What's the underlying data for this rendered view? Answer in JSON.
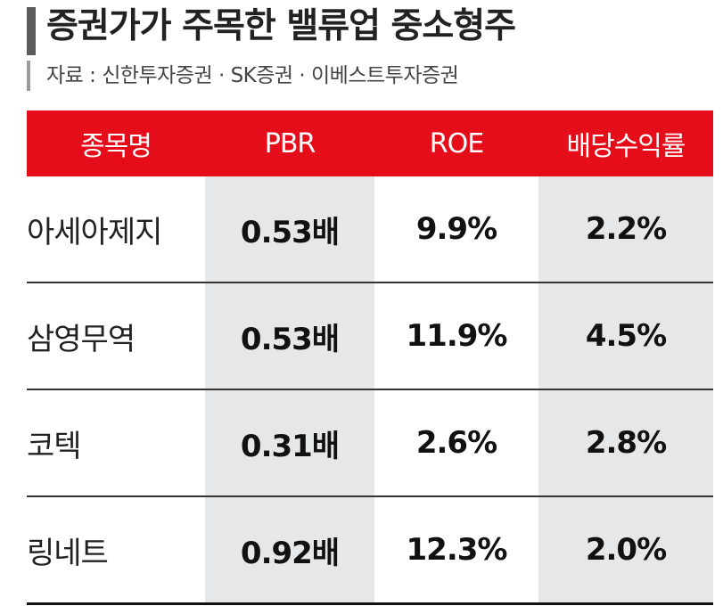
{
  "title": "증권가가 주목한 밸류업 중소형주",
  "source": "자료 : 신한투자증권 · SK증권 · 이베스트투자증권",
  "colors": {
    "header_bg": "#e60d1a",
    "header_text": "#ffffff",
    "shaded_column": "#e6e7e9",
    "title_bar": "#5b5b5b"
  },
  "chart_data": {
    "type": "table",
    "title": "증권가가 주목한 밸류업 중소형주",
    "columns": [
      "종목명",
      "PBR",
      "ROE",
      "배당수익률"
    ],
    "rows": [
      {
        "name": "아세아제지",
        "pbr": "0.53배",
        "roe": "9.9%",
        "dividend_yield": "2.2%"
      },
      {
        "name": "삼영무역",
        "pbr": "0.53배",
        "roe": "11.9%",
        "dividend_yield": "4.5%"
      },
      {
        "name": "코텍",
        "pbr": "0.31배",
        "roe": "2.6%",
        "dividend_yield": "2.8%"
      },
      {
        "name": "링네트",
        "pbr": "0.92배",
        "roe": "12.3%",
        "dividend_yield": "2.0%"
      }
    ]
  }
}
